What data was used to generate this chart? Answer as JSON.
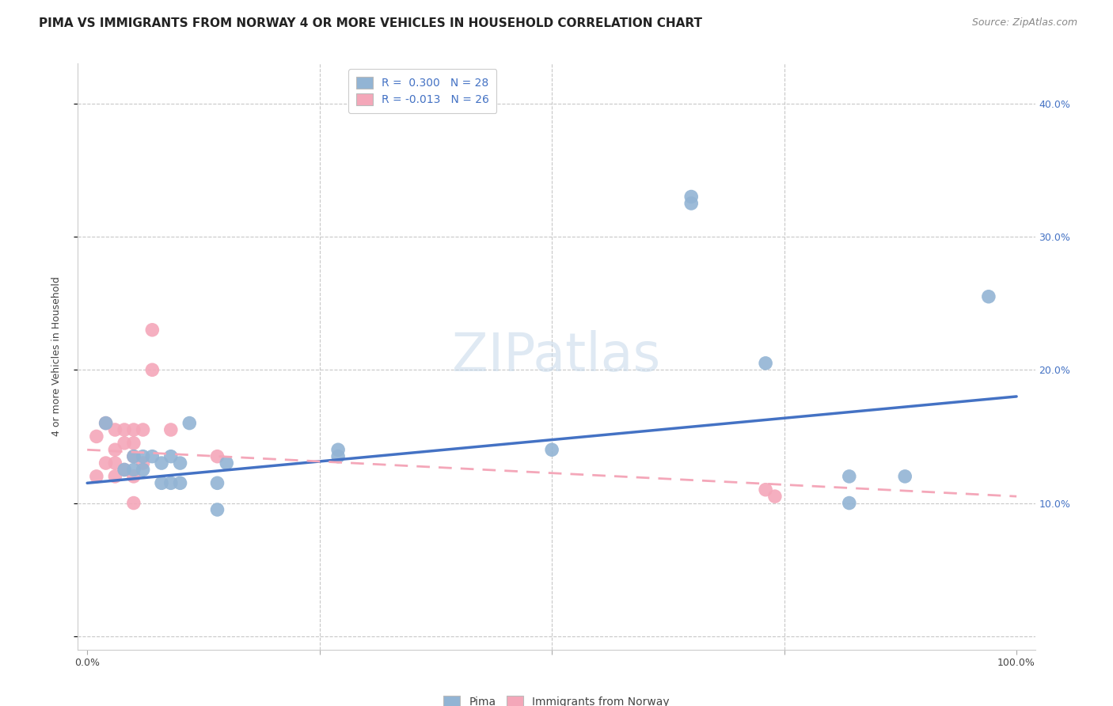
{
  "title": "PIMA VS IMMIGRANTS FROM NORWAY 4 OR MORE VEHICLES IN HOUSEHOLD CORRELATION CHART",
  "source": "Source: ZipAtlas.com",
  "ylabel": "4 or more Vehicles in Household",
  "watermark": "ZIPatlas",
  "xlim": [
    -0.01,
    1.02
  ],
  "ylim": [
    -0.01,
    0.43
  ],
  "xticks": [
    0.0,
    0.25,
    0.5,
    0.75,
    1.0
  ],
  "yticks": [
    0.0,
    0.1,
    0.2,
    0.3,
    0.4
  ],
  "xticklabels_left": "0.0%",
  "xticklabels_right": "100.0%",
  "yticklabels_right": [
    "10.0%",
    "20.0%",
    "30.0%",
    "40.0%"
  ],
  "legend_blue_r": "R =  0.300",
  "legend_blue_n": "N = 28",
  "legend_pink_r": "R = -0.013",
  "legend_pink_n": "N = 26",
  "blue_color": "#92b4d4",
  "pink_color": "#f4a7b9",
  "blue_line_color": "#4472c4",
  "pink_line_color": "#f4a7b9",
  "background_color": "#ffffff",
  "grid_color": "#c8c8c8",
  "blue_scatter_x": [
    0.02,
    0.04,
    0.05,
    0.05,
    0.06,
    0.06,
    0.07,
    0.08,
    0.08,
    0.09,
    0.09,
    0.1,
    0.1,
    0.11,
    0.14,
    0.14,
    0.15,
    0.27,
    0.27,
    0.5,
    0.65,
    0.65,
    0.73,
    0.82,
    0.82,
    0.88,
    0.97
  ],
  "blue_scatter_y": [
    0.16,
    0.125,
    0.135,
    0.125,
    0.135,
    0.125,
    0.135,
    0.13,
    0.115,
    0.135,
    0.115,
    0.115,
    0.13,
    0.16,
    0.115,
    0.095,
    0.13,
    0.14,
    0.135,
    0.14,
    0.33,
    0.325,
    0.205,
    0.12,
    0.1,
    0.12,
    0.255
  ],
  "pink_scatter_x": [
    0.01,
    0.01,
    0.02,
    0.02,
    0.03,
    0.03,
    0.03,
    0.03,
    0.04,
    0.04,
    0.04,
    0.05,
    0.05,
    0.05,
    0.05,
    0.05,
    0.06,
    0.06,
    0.07,
    0.07,
    0.09,
    0.14,
    0.73,
    0.74
  ],
  "pink_scatter_y": [
    0.15,
    0.12,
    0.16,
    0.13,
    0.155,
    0.14,
    0.13,
    0.12,
    0.155,
    0.145,
    0.125,
    0.155,
    0.145,
    0.135,
    0.12,
    0.1,
    0.155,
    0.13,
    0.23,
    0.2,
    0.155,
    0.135,
    0.11,
    0.105
  ],
  "title_fontsize": 11,
  "axis_label_fontsize": 9,
  "tick_fontsize": 9,
  "legend_fontsize": 10,
  "source_fontsize": 9,
  "watermark_fontsize": 48,
  "blue_trendline_x": [
    0.0,
    1.0
  ],
  "blue_trendline_y": [
    0.115,
    0.18
  ],
  "pink_trendline_x": [
    0.0,
    1.0
  ],
  "pink_trendline_y": [
    0.14,
    0.105
  ]
}
